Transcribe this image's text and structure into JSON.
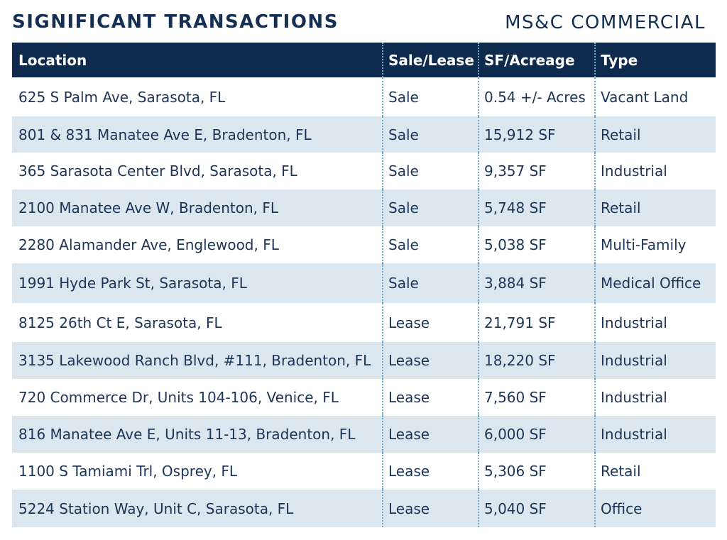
{
  "header": {
    "title": "SIGNIFICANT TRANSACTIONS",
    "brand": "MS&C COMMERCIAL"
  },
  "table": {
    "columns": [
      "Location",
      "Sale/Lease",
      "SF/Acreage",
      "Type"
    ],
    "rows": [
      {
        "location": "625 S Palm Ave, Sarasota, FL",
        "sale_lease": "Sale",
        "sf": "0.54 +/- Acres",
        "type": "Vacant Land"
      },
      {
        "location": "801 & 831 Manatee Ave E, Bradenton, FL",
        "sale_lease": "Sale",
        "sf": "15,912 SF",
        "type": "Retail"
      },
      {
        "location": "365 Sarasota Center Blvd, Sarasota, FL",
        "sale_lease": "Sale",
        "sf": "9,357 SF",
        "type": "Industrial"
      },
      {
        "location": "2100 Manatee Ave W, Bradenton, FL",
        "sale_lease": "Sale",
        "sf": "5,748 SF",
        "type": "Retail"
      },
      {
        "location": "2280 Alamander Ave, Englewood, FL",
        "sale_lease": "Sale",
        "sf": "5,038 SF",
        "type": "Multi-Family"
      },
      {
        "location": "1991 Hyde Park St, Sarasota, FL",
        "sale_lease": "Sale",
        "sf": "3,884 SF",
        "type": "Medical Office"
      },
      {
        "location": "8125 26th Ct E, Sarasota, FL",
        "sale_lease": "Lease",
        "sf": "21,791 SF",
        "type": "Industrial"
      },
      {
        "location": "3135 Lakewood Ranch Blvd, #111, Bradenton, FL",
        "sale_lease": "Lease",
        "sf": "18,220 SF",
        "type": "Industrial"
      },
      {
        "location": "720 Commerce Dr, Units 104-106, Venice, FL",
        "sale_lease": "Lease",
        "sf": "7,560 SF",
        "type": "Industrial"
      },
      {
        "location": "816 Manatee Ave E, Units 11-13, Bradenton, FL",
        "sale_lease": "Lease",
        "sf": "6,000 SF",
        "type": "Industrial"
      },
      {
        "location": "1100 S Tamiami Trl, Osprey, FL",
        "sale_lease": "Lease",
        "sf": "5,306 SF",
        "type": "Retail"
      },
      {
        "location": "5224 Station Way, Unit C, Sarasota, FL",
        "sale_lease": "Lease",
        "sf": "5,040 SF",
        "type": "Office"
      }
    ]
  },
  "colors": {
    "header_bg": "#0e2a4c",
    "stripe_bg": "#dbe6ef",
    "text": "#1c3558",
    "divider": "#6ea9cc"
  }
}
